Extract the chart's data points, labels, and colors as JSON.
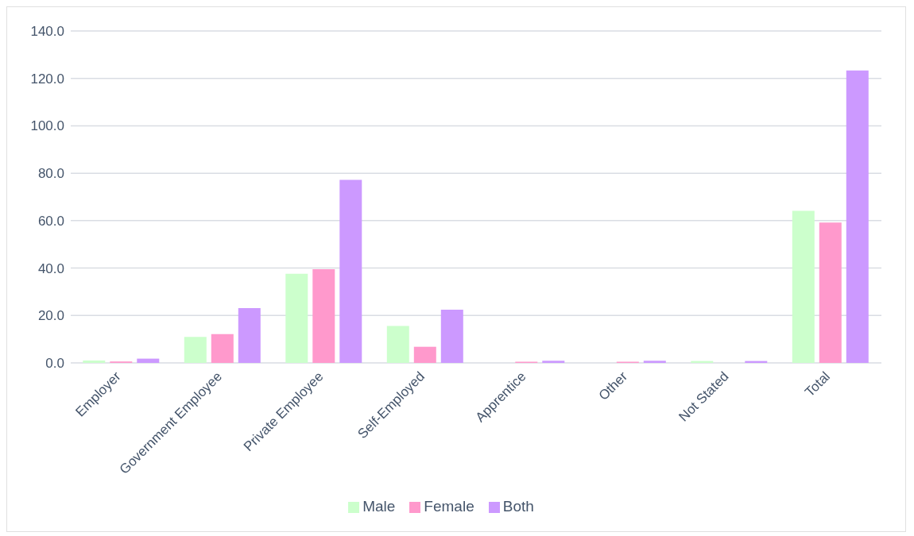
{
  "chart_data": {
    "type": "bar",
    "categories": [
      "Employer",
      "Government Employee",
      "Private Employee",
      "Self-Employed",
      "Apprentice",
      "Other",
      "Not Stated",
      "Total"
    ],
    "series": [
      {
        "name": "Male",
        "color": "#ccffcc",
        "values": [
          1.0,
          11.0,
          37.6,
          15.6,
          null,
          null,
          0.8,
          64.1
        ]
      },
      {
        "name": "Female",
        "color": "#ff99cc",
        "values": [
          0.6,
          12.1,
          39.5,
          6.8,
          0.5,
          0.5,
          null,
          59.2
        ]
      },
      {
        "name": "Both",
        "color": "#cc99ff",
        "values": [
          1.8,
          23.1,
          77.2,
          22.4,
          0.9,
          0.9,
          0.8,
          123.3
        ]
      }
    ],
    "ylim": [
      0,
      140
    ],
    "yticks": [
      {
        "value": 0,
        "label": "0.0"
      },
      {
        "value": 20,
        "label": "20.0"
      },
      {
        "value": 40,
        "label": "40.0"
      },
      {
        "value": 60,
        "label": "60.0"
      },
      {
        "value": 80,
        "label": "80.0"
      },
      {
        "value": 100,
        "label": "100.0"
      },
      {
        "value": 120,
        "label": "120.0"
      },
      {
        "value": 140,
        "label": "140.0"
      }
    ],
    "grid": "y",
    "legend": "bottom"
  }
}
